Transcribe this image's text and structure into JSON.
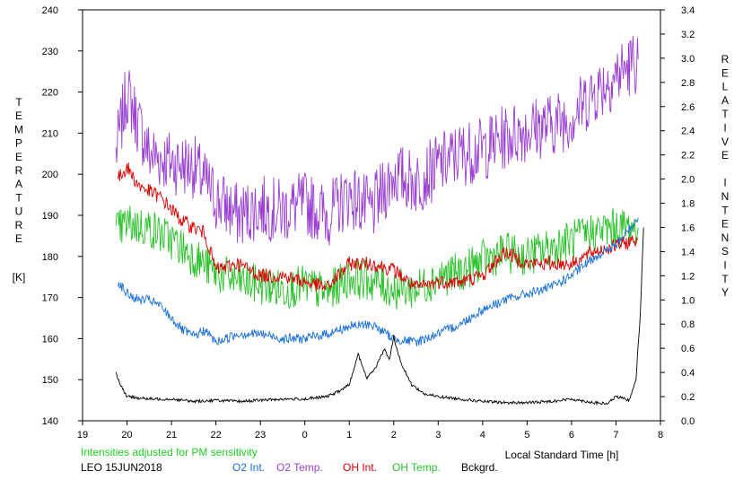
{
  "chart_data": {
    "type": "line",
    "xlabel": "Local Standard Time [h]",
    "ylabel_left_letters": [
      "T",
      "E",
      "M",
      "P",
      "E",
      "R",
      "A",
      "T",
      "U",
      "R",
      "E"
    ],
    "ylabel_left_unit": "[K]",
    "ylabel_right_words": [
      [
        "R",
        "E",
        "L",
        "A",
        "T",
        "I",
        "V",
        "E"
      ],
      [
        "I",
        "N",
        "T",
        "E",
        "N",
        "S",
        "I",
        "T",
        "Y"
      ]
    ],
    "xlim": [
      19,
      8
    ],
    "x_ticks": [
      "19",
      "20",
      "21",
      "22",
      "23",
      "0",
      "1",
      "2",
      "3",
      "4",
      "5",
      "6",
      "7",
      "8"
    ],
    "ylim_left": [
      140,
      240
    ],
    "y_ticks_left": [
      140,
      150,
      160,
      170,
      180,
      190,
      200,
      210,
      220,
      230,
      240
    ],
    "ylim_right": [
      0,
      3.4
    ],
    "y_ticks_right": [
      "0.0",
      "0.2",
      "0.4",
      "0.6",
      "0.8",
      "1.0",
      "1.2",
      "1.4",
      "1.6",
      "1.8",
      "2.0",
      "2.2",
      "2.4",
      "2.6",
      "2.8",
      "3.0",
      "3.2",
      "3.4"
    ],
    "note": "Intensities adjusted for PM sensitivity",
    "station": "LEO 15JUN2018",
    "legend": [
      "O2 Int.",
      "O2 Temp.",
      "OH Int.",
      "OH Temp.",
      "Bckgrd."
    ],
    "colors": {
      "o2_int": "#1a6fd6",
      "o2_temp": "#9a40d0",
      "oh_int": "#d80000",
      "oh_temp": "#2cc02c",
      "bckgrd": "#000000",
      "note": "#22cc22"
    },
    "series": [
      {
        "key": "o2_temp",
        "axis": "left",
        "x": [
          19.75,
          20.0,
          20.5,
          21.0,
          21.5,
          22.0,
          22.5,
          23.0,
          23.5,
          0.0,
          0.5,
          1.0,
          1.5,
          2.0,
          2.5,
          3.0,
          3.5,
          4.0,
          4.5,
          5.0,
          5.5,
          6.0,
          6.5,
          7.0,
          7.5
        ],
        "y": [
          205,
          220,
          205,
          203,
          202,
          194,
          190,
          192,
          191,
          193,
          190,
          195,
          191,
          200,
          198,
          202,
          205,
          206,
          209,
          211,
          212,
          214,
          220,
          224,
          228
        ]
      },
      {
        "key": "oh_temp",
        "axis": "left",
        "x": [
          19.75,
          20.0,
          20.5,
          21.0,
          21.5,
          22.0,
          22.5,
          23.0,
          23.5,
          0.0,
          0.5,
          1.0,
          1.5,
          2.0,
          2.5,
          3.0,
          3.5,
          4.0,
          4.5,
          5.0,
          5.5,
          6.0,
          6.5,
          7.0,
          7.5
        ],
        "y": [
          186,
          188,
          187,
          184,
          180,
          176,
          174,
          173,
          172,
          173,
          171,
          175,
          174,
          172,
          172,
          175,
          176,
          179,
          181,
          180,
          182,
          184,
          186,
          187,
          187
        ]
      },
      {
        "key": "oh_int",
        "axis": "right",
        "x": [
          19.8,
          20.0,
          20.25,
          20.5,
          20.75,
          21.0,
          21.25,
          21.5,
          21.75,
          22.0,
          22.5,
          23.0,
          23.5,
          0.0,
          0.5,
          1.0,
          1.5,
          2.0,
          2.5,
          3.0,
          3.5,
          4.0,
          4.5,
          5.0,
          5.5,
          6.0,
          6.5,
          7.0,
          7.5
        ],
        "y": [
          2.0,
          2.1,
          1.95,
          1.9,
          1.85,
          1.75,
          1.65,
          1.6,
          1.55,
          1.25,
          1.3,
          1.2,
          1.2,
          1.15,
          1.1,
          1.3,
          1.3,
          1.25,
          1.1,
          1.15,
          1.15,
          1.2,
          1.4,
          1.3,
          1.3,
          1.3,
          1.4,
          1.45,
          1.5
        ]
      },
      {
        "key": "o2_int",
        "axis": "right",
        "x": [
          19.8,
          20.0,
          20.25,
          20.5,
          20.75,
          21.0,
          21.25,
          21.5,
          21.75,
          22.0,
          22.5,
          23.0,
          23.5,
          0.0,
          0.5,
          1.0,
          1.5,
          2.0,
          2.5,
          3.0,
          3.5,
          4.0,
          4.5,
          5.0,
          5.5,
          6.0,
          6.5,
          7.0,
          7.5
        ],
        "y": [
          1.15,
          1.05,
          1.0,
          1.0,
          0.95,
          0.85,
          0.75,
          0.7,
          0.75,
          0.65,
          0.72,
          0.72,
          0.68,
          0.68,
          0.72,
          0.78,
          0.8,
          0.68,
          0.65,
          0.72,
          0.8,
          0.92,
          1.0,
          1.05,
          1.1,
          1.2,
          1.35,
          1.45,
          1.68
        ]
      },
      {
        "key": "bckgrd",
        "axis": "right",
        "x": [
          19.75,
          19.85,
          20.0,
          20.5,
          21.0,
          21.5,
          22.0,
          22.5,
          23.0,
          23.5,
          0.0,
          0.5,
          0.8,
          1.0,
          1.2,
          1.4,
          1.6,
          1.8,
          1.9,
          2.0,
          2.1,
          2.2,
          2.4,
          2.7,
          3.0,
          3.5,
          4.0,
          4.5,
          5.0,
          5.5,
          6.0,
          6.5,
          6.8,
          7.0,
          7.3,
          7.45,
          7.55,
          7.62
        ],
        "y": [
          0.4,
          0.3,
          0.2,
          0.18,
          0.18,
          0.16,
          0.17,
          0.16,
          0.17,
          0.18,
          0.18,
          0.2,
          0.25,
          0.3,
          0.55,
          0.35,
          0.45,
          0.6,
          0.5,
          0.7,
          0.55,
          0.45,
          0.3,
          0.22,
          0.2,
          0.18,
          0.16,
          0.15,
          0.15,
          0.16,
          0.18,
          0.15,
          0.14,
          0.2,
          0.17,
          0.35,
          0.9,
          1.6
        ]
      }
    ]
  }
}
